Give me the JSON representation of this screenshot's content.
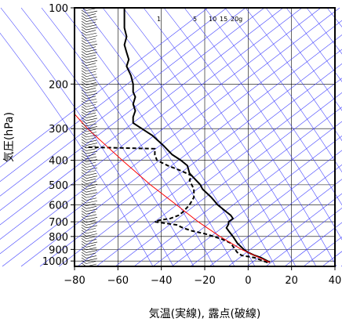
{
  "chart_data": {
    "type": "line",
    "title": "",
    "xlabel": "気温(実線), 露点(破線)",
    "ylabel": "気圧(hPa)",
    "xlim": [
      -80,
      40
    ],
    "ylim_pressure": [
      1050,
      100
    ],
    "y_scale": "log",
    "grid": true,
    "x_ticks": [
      -80,
      -60,
      -40,
      -20,
      0,
      20,
      40
    ],
    "x_tick_labels": [
      "−80",
      "−60",
      "−40",
      "−20",
      "0",
      "20",
      "40"
    ],
    "y_ticks": [
      100,
      200,
      300,
      400,
      500,
      600,
      700,
      800,
      900,
      1000
    ],
    "y_tick_labels": [
      "100",
      "200",
      "300",
      "400",
      "500",
      "600",
      "700",
      "800",
      "900",
      "1000"
    ],
    "mixing_ratio_labels": [
      "1",
      "5",
      "10",
      "15",
      "20g"
    ],
    "mixing_ratio_values": [
      1,
      5,
      10,
      15,
      20
    ],
    "series": [
      {
        "kind": "temperature",
        "style": "solid",
        "color": "#000000",
        "points": [
          {
            "p": 1013,
            "t": 10
          },
          {
            "p": 1000,
            "t": 9
          },
          {
            "p": 970,
            "t": 6
          },
          {
            "p": 950,
            "t": 3
          },
          {
            "p": 925,
            "t": 0
          },
          {
            "p": 900,
            "t": -2
          },
          {
            "p": 850,
            "t": -5
          },
          {
            "p": 800,
            "t": -7
          },
          {
            "p": 760,
            "t": -9
          },
          {
            "p": 740,
            "t": -10
          },
          {
            "p": 715,
            "t": -9
          },
          {
            "p": 700,
            "t": -9
          },
          {
            "p": 680,
            "t": -7
          },
          {
            "p": 660,
            "t": -8
          },
          {
            "p": 640,
            "t": -10
          },
          {
            "p": 600,
            "t": -14
          },
          {
            "p": 560,
            "t": -17
          },
          {
            "p": 520,
            "t": -21
          },
          {
            "p": 500,
            "t": -22
          },
          {
            "p": 470,
            "t": -25
          },
          {
            "p": 450,
            "t": -27
          },
          {
            "p": 420,
            "t": -28
          },
          {
            "p": 400,
            "t": -31
          },
          {
            "p": 380,
            "t": -35
          },
          {
            "p": 350,
            "t": -39
          },
          {
            "p": 320,
            "t": -44
          },
          {
            "p": 300,
            "t": -49
          },
          {
            "p": 285,
            "t": -53
          },
          {
            "p": 270,
            "t": -53
          },
          {
            "p": 255,
            "t": -52
          },
          {
            "p": 240,
            "t": -53
          },
          {
            "p": 225,
            "t": -52
          },
          {
            "p": 215,
            "t": -53
          },
          {
            "p": 200,
            "t": -53
          },
          {
            "p": 185,
            "t": -54
          },
          {
            "p": 170,
            "t": -56
          },
          {
            "p": 160,
            "t": -55
          },
          {
            "p": 150,
            "t": -56
          },
          {
            "p": 140,
            "t": -57
          },
          {
            "p": 130,
            "t": -56
          },
          {
            "p": 120,
            "t": -57
          },
          {
            "p": 110,
            "t": -57
          },
          {
            "p": 100,
            "t": -57
          }
        ]
      },
      {
        "kind": "dewpoint",
        "style": "dashed",
        "color": "#000000",
        "points": [
          {
            "p": 1013,
            "t": 9
          },
          {
            "p": 1000,
            "t": 7
          },
          {
            "p": 970,
            "t": 3
          },
          {
            "p": 950,
            "t": -3
          },
          {
            "p": 925,
            "t": -5
          },
          {
            "p": 900,
            "t": -6
          },
          {
            "p": 850,
            "t": -8
          },
          {
            "p": 820,
            "t": -12
          },
          {
            "p": 800,
            "t": -16
          },
          {
            "p": 780,
            "t": -20
          },
          {
            "p": 760,
            "t": -26
          },
          {
            "p": 740,
            "t": -30
          },
          {
            "p": 720,
            "t": -33
          },
          {
            "p": 700,
            "t": -43
          },
          {
            "p": 690,
            "t": -41
          },
          {
            "p": 680,
            "t": -36
          },
          {
            "p": 660,
            "t": -32
          },
          {
            "p": 640,
            "t": -30
          },
          {
            "p": 600,
            "t": -27
          },
          {
            "p": 560,
            "t": -25
          },
          {
            "p": 520,
            "t": -25
          },
          {
            "p": 480,
            "t": -27
          },
          {
            "p": 460,
            "t": -26
          },
          {
            "p": 440,
            "t": -31
          },
          {
            "p": 420,
            "t": -37
          },
          {
            "p": 400,
            "t": -42
          },
          {
            "p": 380,
            "t": -43
          },
          {
            "p": 360,
            "t": -43
          },
          {
            "p": 355,
            "t": -75
          }
        ]
      },
      {
        "kind": "reference-line",
        "style": "solid",
        "color": "#ff0000",
        "points": [
          {
            "p": 1013,
            "t": 10
          },
          {
            "p": 900,
            "t": -3
          },
          {
            "p": 800,
            "t": -13
          },
          {
            "p": 700,
            "t": -23
          },
          {
            "p": 600,
            "t": -33
          },
          {
            "p": 500,
            "t": -45
          },
          {
            "p": 400,
            "t": -58
          },
          {
            "p": 300,
            "t": -74
          },
          {
            "p": 240,
            "t": -84
          }
        ]
      }
    ],
    "isotherm_color": "#4040ff",
    "dry_adiabat_color": "#4040ff",
    "mixing_ratio_color": "#4040ff"
  }
}
